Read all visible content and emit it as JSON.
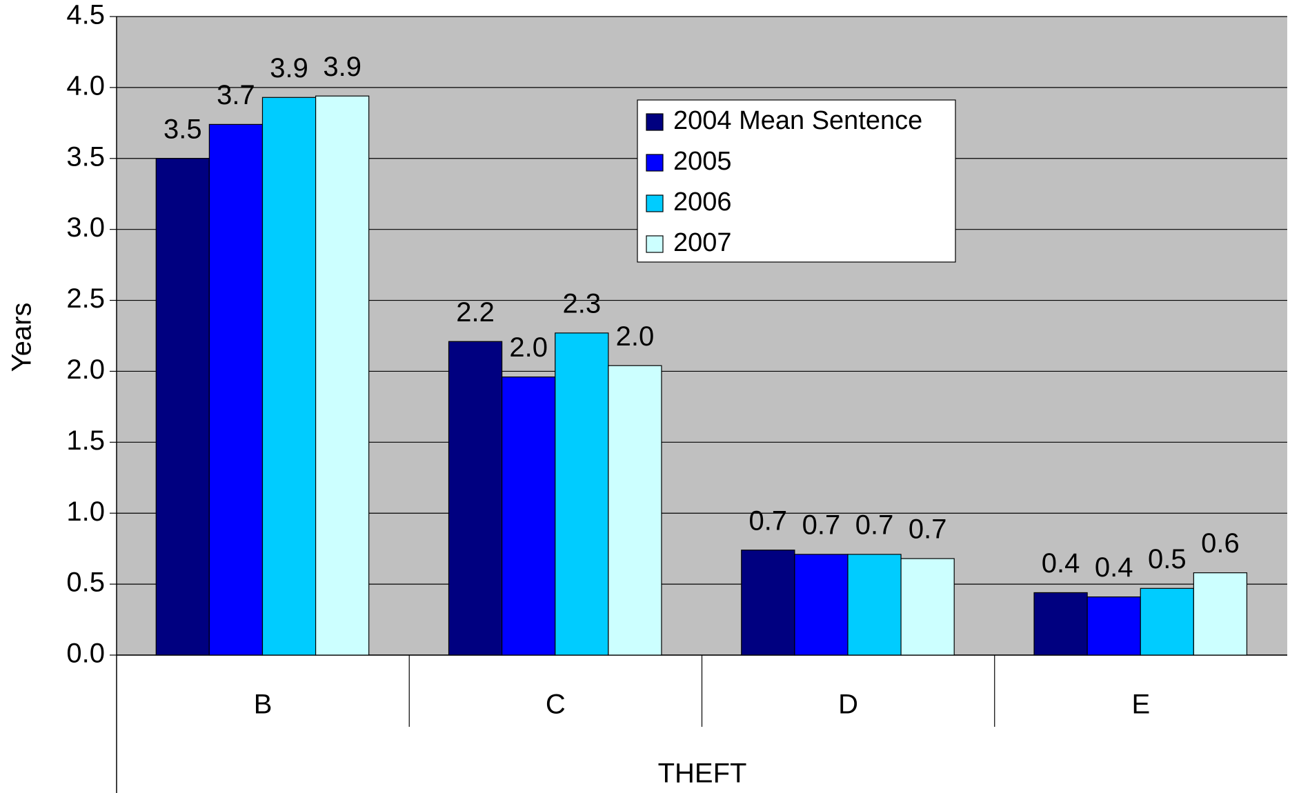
{
  "chart_data": {
    "type": "bar",
    "y_label": "Years",
    "x_label": "THEFT",
    "categories": [
      "B",
      "C",
      "D",
      "E"
    ],
    "series": [
      {
        "name": "2004 Mean Sentence",
        "color": "#000080",
        "values": [
          3.5,
          2.21,
          0.74,
          0.44
        ],
        "value_labels": [
          "3.5",
          "2.2",
          "0.7",
          "0.4"
        ]
      },
      {
        "name": "2005",
        "color": "#0000ff",
        "values": [
          3.74,
          1.96,
          0.71,
          0.41
        ],
        "value_labels": [
          "3.7",
          "2.0",
          "0.7",
          "0.4"
        ]
      },
      {
        "name": "2006",
        "color": "#00ccff",
        "values": [
          3.93,
          2.27,
          0.71,
          0.47
        ],
        "value_labels": [
          "3.9",
          "2.3",
          "0.7",
          "0.5"
        ]
      },
      {
        "name": "2007",
        "color": "#ccffff",
        "values": [
          3.94,
          2.04,
          0.68,
          0.58
        ],
        "value_labels": [
          "3.9",
          "2.0",
          "0.7",
          "0.6"
        ]
      }
    ],
    "ylim": [
      0,
      4.5
    ],
    "yticks": [
      {
        "value": 0,
        "label": "0.0"
      },
      0.5,
      {
        "value": 1,
        "label": "1.0"
      },
      1.5,
      {
        "value": 2,
        "label": "2.0"
      },
      2.5,
      {
        "value": 3,
        "label": "3.0"
      },
      3.5,
      {
        "value": 4,
        "label": "4.0"
      },
      4.5
    ],
    "grid": true,
    "legend": "top-center",
    "plot_background": "#c0c0c0"
  }
}
